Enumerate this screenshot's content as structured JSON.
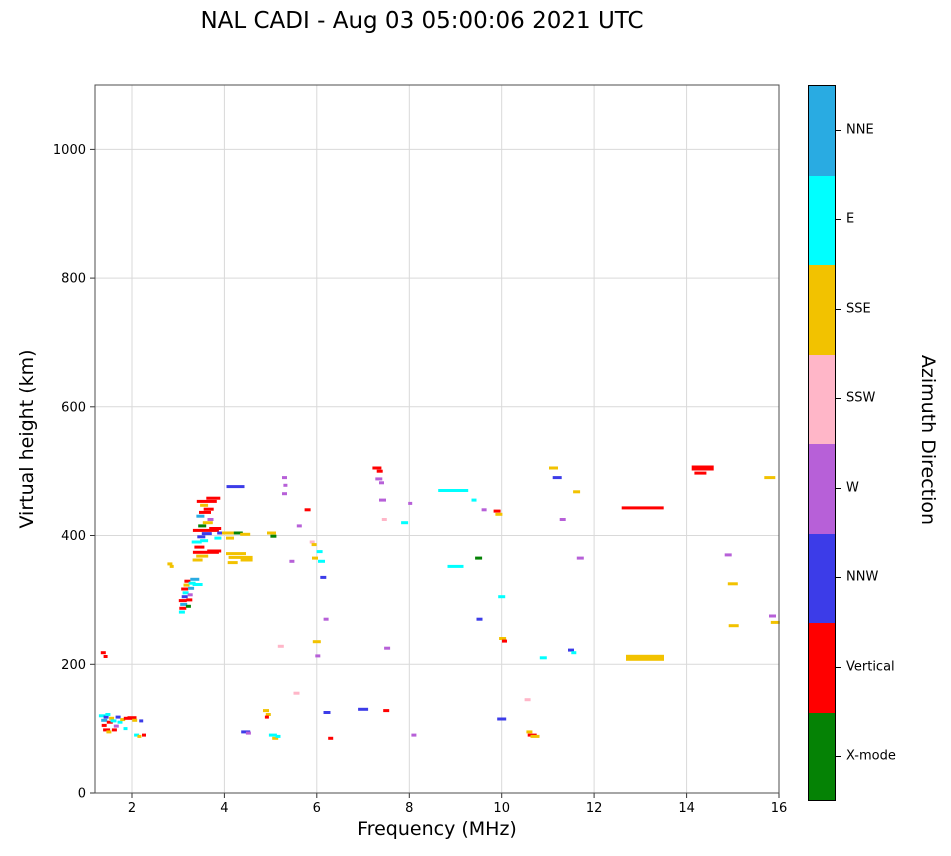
{
  "title": "NAL CADI - Aug 03 05:00:06 2021 UTC",
  "chart_data": {
    "type": "scatter",
    "title": "NAL CADI - Aug 03 05:00:06 2021 UTC",
    "xlabel": "Frequency (MHz)",
    "ylabel": "Virtual height (km)",
    "xlim": [
      1.2,
      16
    ],
    "ylim": [
      0,
      1100
    ],
    "xticks": [
      2,
      4,
      6,
      8,
      10,
      12,
      14,
      16
    ],
    "yticks": [
      0,
      200,
      400,
      600,
      800,
      1000
    ],
    "grid": true,
    "legend_position": "right-colorbar",
    "colorbar": {
      "label": "Azimuth Direction",
      "categories": [
        {
          "label": "NNE",
          "color": "#29abe2"
        },
        {
          "label": "E",
          "color": "#00ffff"
        },
        {
          "label": "SSE",
          "color": "#f2c200"
        },
        {
          "label": "SSW",
          "color": "#ffb6c8"
        },
        {
          "label": "W",
          "color": "#b760d8"
        },
        {
          "label": "NNW",
          "color": "#3c3ce8"
        },
        {
          "label": "Vertical",
          "color": "#ff0000"
        },
        {
          "label": "X-mode",
          "color": "#058205"
        }
      ]
    },
    "points_format": "[frequency_MHz, virtual_height_km, direction_index, dash_width_px, dash_height_px(optional)]",
    "points": [
      [
        1.38,
        218,
        6,
        5
      ],
      [
        1.43,
        212,
        6,
        4
      ],
      [
        1.36,
        120,
        1,
        7
      ],
      [
        1.4,
        113,
        0,
        6
      ],
      [
        1.44,
        118,
        5,
        5
      ],
      [
        1.48,
        122,
        1,
        5
      ],
      [
        1.4,
        105,
        6,
        5
      ],
      [
        1.45,
        98,
        6,
        7
      ],
      [
        1.5,
        95,
        2,
        5
      ],
      [
        1.52,
        110,
        6,
        6
      ],
      [
        1.56,
        116,
        2,
        5
      ],
      [
        1.6,
        112,
        1,
        6
      ],
      [
        1.62,
        98,
        6,
        5
      ],
      [
        1.66,
        104,
        4,
        5
      ],
      [
        1.7,
        118,
        5,
        5
      ],
      [
        1.74,
        110,
        1,
        5
      ],
      [
        1.8,
        114,
        2,
        5
      ],
      [
        1.86,
        100,
        1,
        4
      ],
      [
        1.92,
        116,
        6,
        9
      ],
      [
        2.0,
        117,
        6,
        9
      ],
      [
        2.06,
        113,
        2,
        5
      ],
      [
        2.1,
        90,
        1,
        5
      ],
      [
        2.16,
        88,
        2,
        4
      ],
      [
        2.2,
        112,
        5,
        4
      ],
      [
        2.26,
        90,
        6,
        4
      ],
      [
        2.82,
        356,
        2,
        5
      ],
      [
        2.86,
        352,
        2,
        4
      ],
      [
        3.08,
        281,
        1,
        6
      ],
      [
        3.1,
        287,
        6,
        7
      ],
      [
        3.12,
        293,
        0,
        7
      ],
      [
        3.1,
        299,
        6,
        8
      ],
      [
        3.14,
        305,
        5,
        6
      ],
      [
        3.16,
        311,
        1,
        6
      ],
      [
        3.14,
        317,
        6,
        7
      ],
      [
        3.18,
        323,
        2,
        6
      ],
      [
        3.2,
        329,
        6,
        6
      ],
      [
        3.22,
        290,
        7,
        5
      ],
      [
        3.24,
        300,
        6,
        6
      ],
      [
        3.26,
        308,
        4,
        5
      ],
      [
        3.28,
        318,
        0,
        6
      ],
      [
        3.3,
        326,
        1,
        7
      ],
      [
        3.36,
        332,
        0,
        9
      ],
      [
        3.42,
        324,
        1,
        10
      ],
      [
        3.42,
        362,
        2,
        10
      ],
      [
        3.52,
        368,
        2,
        12
      ],
      [
        3.6,
        374,
        6,
        26
      ],
      [
        3.78,
        376,
        6,
        14
      ],
      [
        3.46,
        382,
        6,
        10
      ],
      [
        3.4,
        390,
        1,
        10
      ],
      [
        3.56,
        392,
        1,
        8
      ],
      [
        3.5,
        398,
        5,
        8
      ],
      [
        3.62,
        403,
        5,
        10
      ],
      [
        3.6,
        408,
        6,
        26
      ],
      [
        3.8,
        411,
        6,
        12
      ],
      [
        3.52,
        415,
        7,
        8
      ],
      [
        3.64,
        420,
        2,
        10
      ],
      [
        3.7,
        425,
        4,
        6
      ],
      [
        3.48,
        430,
        0,
        8
      ],
      [
        3.58,
        436,
        6,
        12
      ],
      [
        3.66,
        441,
        6,
        10
      ],
      [
        3.56,
        447,
        2,
        8
      ],
      [
        3.62,
        453,
        6,
        20
      ],
      [
        3.76,
        458,
        6,
        14
      ],
      [
        3.86,
        396,
        1,
        7
      ],
      [
        3.92,
        404,
        5,
        7
      ],
      [
        4.1,
        404,
        2,
        14
      ],
      [
        4.3,
        404,
        7,
        9
      ],
      [
        4.45,
        402,
        2,
        10
      ],
      [
        4.12,
        396,
        2,
        8
      ],
      [
        4.25,
        372,
        2,
        20
      ],
      [
        4.35,
        366,
        2,
        24
      ],
      [
        4.48,
        362,
        2,
        12
      ],
      [
        4.18,
        358,
        2,
        10
      ],
      [
        4.24,
        476,
        5,
        18
      ],
      [
        4.46,
        95,
        5,
        9
      ],
      [
        4.52,
        93,
        4,
        5
      ],
      [
        4.9,
        128,
        2,
        6
      ],
      [
        4.95,
        122,
        2,
        5
      ],
      [
        4.92,
        118,
        6,
        4
      ],
      [
        5.02,
        404,
        2,
        9
      ],
      [
        5.06,
        399,
        7,
        6
      ],
      [
        5.05,
        90,
        1,
        8
      ],
      [
        5.1,
        85,
        2,
        6
      ],
      [
        5.16,
        88,
        1,
        5
      ],
      [
        5.22,
        228,
        3,
        6
      ],
      [
        5.3,
        490,
        4,
        5
      ],
      [
        5.32,
        478,
        4,
        4
      ],
      [
        5.3,
        465,
        4,
        5
      ],
      [
        5.46,
        360,
        4,
        5
      ],
      [
        5.56,
        155,
        3,
        6
      ],
      [
        5.62,
        415,
        4,
        5
      ],
      [
        5.8,
        440,
        6,
        6
      ],
      [
        5.9,
        390,
        3,
        5
      ],
      [
        5.94,
        386,
        2,
        5
      ],
      [
        5.96,
        365,
        2,
        6
      ],
      [
        6.0,
        235,
        2,
        8
      ],
      [
        6.02,
        213,
        4,
        5
      ],
      [
        6.06,
        375,
        1,
        6
      ],
      [
        6.1,
        360,
        1,
        7
      ],
      [
        6.14,
        335,
        5,
        6
      ],
      [
        6.2,
        270,
        4,
        5
      ],
      [
        6.22,
        125,
        5,
        7
      ],
      [
        6.3,
        85,
        6,
        5
      ],
      [
        7.0,
        130,
        5,
        10
      ],
      [
        7.3,
        505,
        6,
        9
      ],
      [
        7.36,
        500,
        6,
        6
      ],
      [
        7.34,
        488,
        4,
        7
      ],
      [
        7.4,
        482,
        4,
        5
      ],
      [
        7.42,
        455,
        4,
        7
      ],
      [
        7.46,
        425,
        3,
        5
      ],
      [
        7.52,
        225,
        4,
        6
      ],
      [
        7.5,
        128,
        6,
        6
      ],
      [
        7.9,
        420,
        1,
        7
      ],
      [
        8.02,
        450,
        4,
        4
      ],
      [
        8.1,
        90,
        4,
        5
      ],
      [
        8.95,
        470,
        1,
        30
      ],
      [
        9.0,
        352,
        1,
        16
      ],
      [
        9.4,
        455,
        1,
        5
      ],
      [
        9.5,
        365,
        7,
        7
      ],
      [
        9.52,
        270,
        5,
        6
      ],
      [
        9.62,
        440,
        4,
        5
      ],
      [
        9.9,
        438,
        6,
        7
      ],
      [
        9.94,
        433,
        2,
        7
      ],
      [
        10.0,
        305,
        1,
        7
      ],
      [
        10.02,
        240,
        2,
        7
      ],
      [
        10.06,
        236,
        6,
        5
      ],
      [
        10.0,
        115,
        5,
        9
      ],
      [
        10.56,
        145,
        3,
        6
      ],
      [
        10.6,
        95,
        2,
        6
      ],
      [
        10.66,
        90,
        6,
        9
      ],
      [
        10.72,
        88,
        2,
        9
      ],
      [
        10.9,
        210,
        1,
        7
      ],
      [
        11.12,
        505,
        2,
        9
      ],
      [
        11.2,
        490,
        5,
        9
      ],
      [
        11.32,
        425,
        4,
        6
      ],
      [
        11.5,
        222,
        5,
        6
      ],
      [
        11.56,
        218,
        1,
        5
      ],
      [
        11.62,
        468,
        2,
        7
      ],
      [
        11.7,
        365,
        4,
        7
      ],
      [
        13.05,
        443,
        6,
        42
      ],
      [
        13.1,
        210,
        2,
        38,
        6
      ],
      [
        14.35,
        505,
        6,
        22,
        5
      ],
      [
        14.3,
        497,
        6,
        12
      ],
      [
        14.9,
        370,
        4,
        7
      ],
      [
        15.0,
        325,
        2,
        10
      ],
      [
        15.02,
        260,
        2,
        10
      ],
      [
        15.8,
        490,
        2,
        11
      ],
      [
        15.86,
        275,
        4,
        7
      ],
      [
        15.92,
        265,
        2,
        9
      ]
    ]
  }
}
